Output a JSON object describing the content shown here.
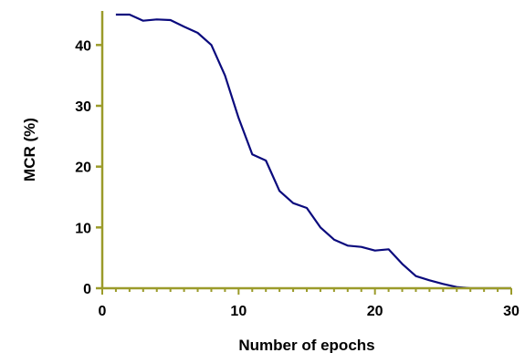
{
  "chart_data": {
    "type": "line",
    "title": "",
    "xlabel": "Number of epochs",
    "ylabel": "MCR (%)",
    "xlim": [
      0,
      30
    ],
    "ylim": [
      0,
      45
    ],
    "x_ticks": [
      0,
      10,
      20,
      30
    ],
    "y_ticks": [
      0,
      10,
      20,
      30,
      40
    ],
    "grid": false,
    "legend": "none",
    "axis_color": "#9b9b2a",
    "series": [
      {
        "color": "#0a0a7d",
        "x": [
          1,
          2,
          3,
          4,
          5,
          6,
          7,
          8,
          9,
          10,
          11,
          12,
          13,
          14,
          15,
          16,
          17,
          18,
          19,
          20,
          21,
          22,
          23,
          24,
          25,
          26,
          27,
          28,
          29,
          30
        ],
        "y": [
          45,
          45,
          44,
          44.2,
          44.1,
          43,
          42,
          40,
          35,
          28,
          22,
          21,
          16,
          14,
          13.2,
          10,
          8,
          7,
          6.8,
          6.2,
          6.4,
          4,
          2,
          1.3,
          0.7,
          0.2,
          0,
          0,
          0,
          0
        ]
      }
    ]
  }
}
